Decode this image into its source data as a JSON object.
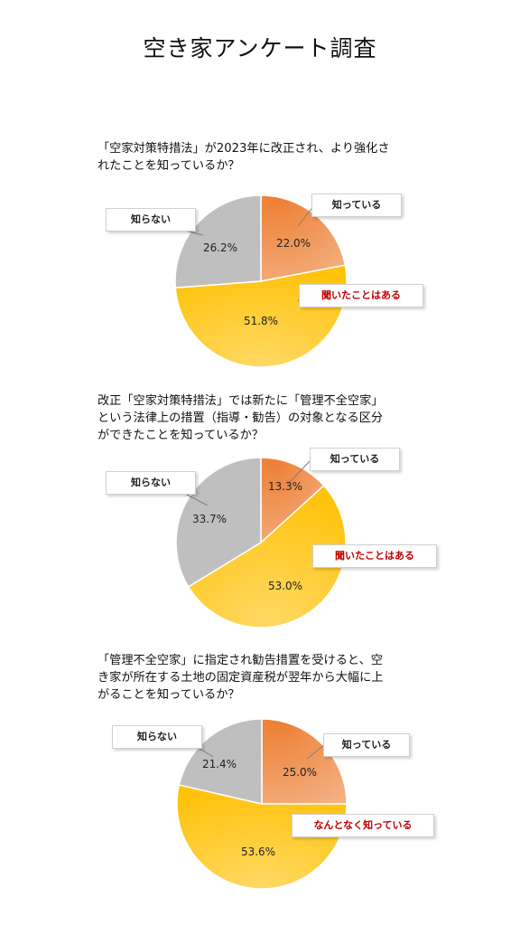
{
  "title": "空き家アンケート調査",
  "colors": {
    "know": "#f4b183",
    "know_edge": "#ed7d31",
    "heard": "#ffc000",
    "heard_edge": "#ffd966",
    "dont": "#bfbfbf"
  },
  "chart_data": [
    {
      "type": "pie",
      "question_lines": [
        "「空家対策特措法」が2023年に改正され、より強化さ",
        "れたことを知っているか？"
      ],
      "slices": [
        {
          "label": "知っている",
          "value": 22.0,
          "display": "22.0%",
          "color_key": "know"
        },
        {
          "label": "聞いたことはある",
          "value": 51.8,
          "display": "51.8%",
          "color_key": "heard"
        },
        {
          "label": "知らない",
          "value": 26.2,
          "display": "26.2%",
          "color_key": "dont"
        }
      ]
    },
    {
      "type": "pie",
      "question_lines": [
        "改正「空家対策特措法」では新たに「管理不全空家」",
        "という法律上の措置（指導・勧告）の対象となる区分",
        "ができたことを知っているか？"
      ],
      "slices": [
        {
          "label": "知っている",
          "value": 13.3,
          "display": "13.3%",
          "color_key": "know"
        },
        {
          "label": "聞いたことはある",
          "value": 53.0,
          "display": "53.0%",
          "color_key": "heard"
        },
        {
          "label": "知らない",
          "value": 33.7,
          "display": "33.7%",
          "color_key": "dont"
        }
      ]
    },
    {
      "type": "pie",
      "question_lines": [
        "「管理不全空家」に指定され勧告措置を受けると、空",
        "き家が所在する土地の固定資産税が翌年から大幅に上",
        "がることを知っているか？"
      ],
      "slices": [
        {
          "label": "知っている",
          "value": 25.0,
          "display": "25.0%",
          "color_key": "know"
        },
        {
          "label": "なんとなく知っている",
          "value": 53.6,
          "display": "53.6%",
          "color_key": "heard"
        },
        {
          "label": "知らない",
          "value": 21.4,
          "display": "21.4%",
          "color_key": "dont"
        }
      ]
    }
  ]
}
